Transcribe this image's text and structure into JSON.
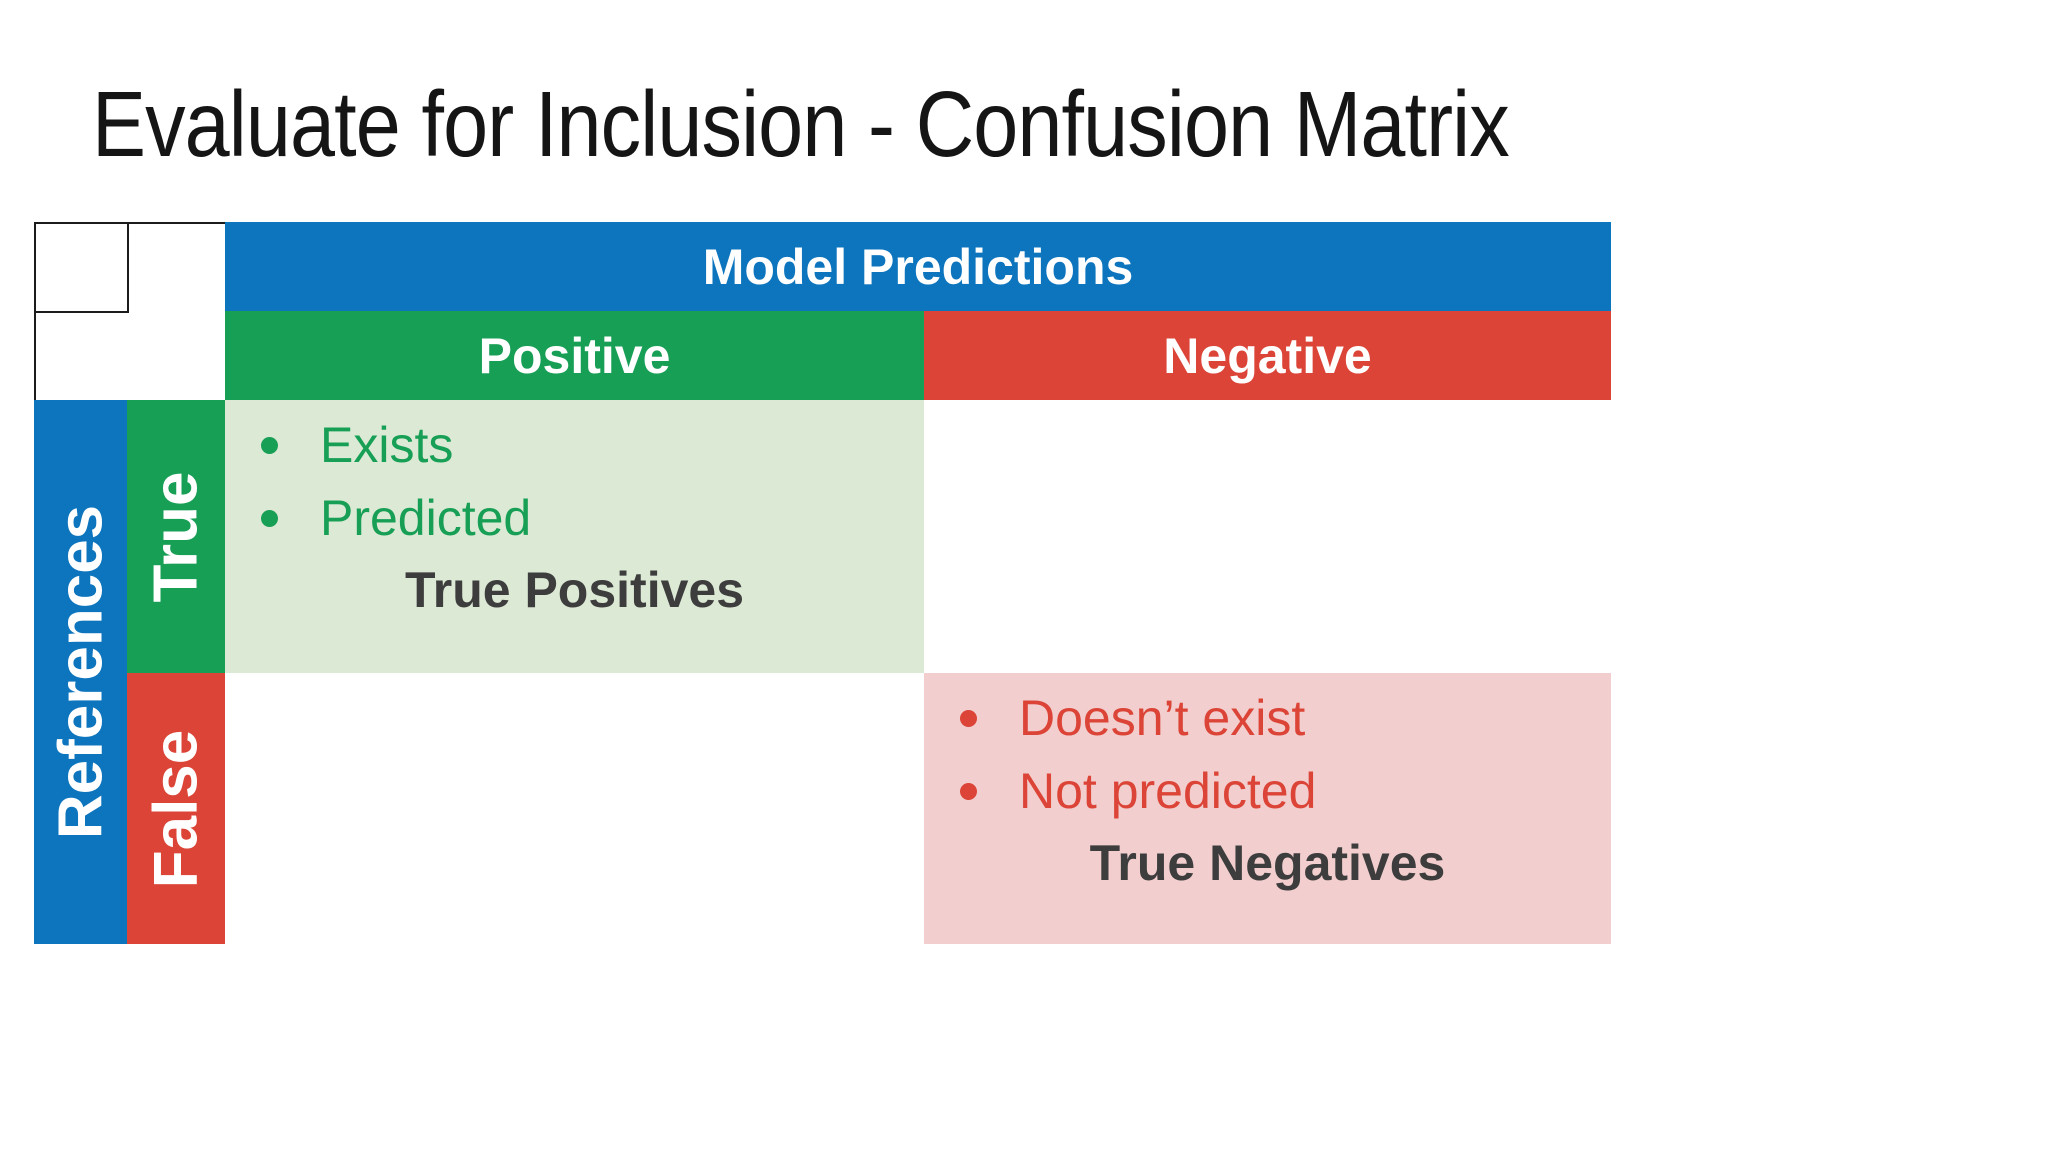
{
  "slide": {
    "title": "Evaluate for Inclusion - Confusion Matrix"
  },
  "matrix": {
    "column_group_label": "Model Predictions",
    "row_group_label": "References",
    "column_headers": [
      {
        "label": "Positive"
      },
      {
        "label": "Negative"
      }
    ],
    "row_headers": [
      {
        "label": "True"
      },
      {
        "label": "False"
      }
    ],
    "cells": {
      "true_positives": {
        "bullets": [
          "Exists",
          "Predicted"
        ],
        "caption": "True Positives"
      },
      "false_positive": {
        "content": ""
      },
      "false_negative": {
        "content": ""
      },
      "true_negatives": {
        "bullets": [
          "Doesn’t exist",
          "Not predicted"
        ],
        "caption": "True Negatives"
      }
    }
  },
  "colors": {
    "blue": "#0d75bd",
    "green": "#189f56",
    "red": "#db4437",
    "light_green": "#dce9d5",
    "light_red": "#f2cfce",
    "caption_text": "#3d3d3d",
    "border_black": "#1b1b1b"
  }
}
